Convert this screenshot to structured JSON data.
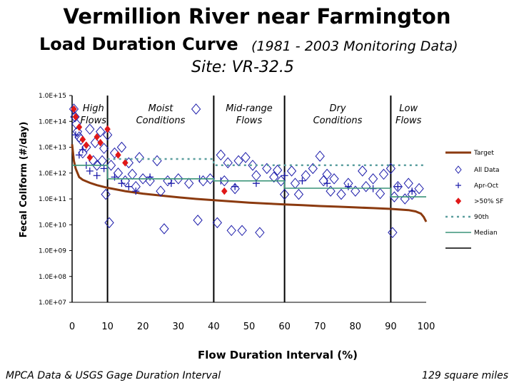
{
  "chart_data": {
    "type": "scatter",
    "title": "Vermillion River near Farmington",
    "subtitle": "Load Duration Curve",
    "period": "(1981 - 2003 Monitoring Data)",
    "site": "Site:  VR-32.5",
    "xlabel": "Flow Duration Interval (%)",
    "ylabel": "Fecal Coliform (#/day)",
    "xlim": [
      0,
      100
    ],
    "ylim": [
      10000000.0,
      1000000000000000.0
    ],
    "yscale": "log",
    "x_ticks": [
      "0",
      "10",
      "20",
      "30",
      "40",
      "50",
      "60",
      "70",
      "80",
      "90",
      "100"
    ],
    "y_ticks": [
      "1.0E+07",
      "1.0E+08",
      "1.0E+09",
      "1.0E+10",
      "1.0E+11",
      "1.0E+12",
      "1.0E+13",
      "1.0E+14",
      "1.0E+15"
    ],
    "zone_dividers": [
      10,
      40,
      60,
      90
    ],
    "zones": [
      {
        "label": "High\nFlows",
        "x": 6
      },
      {
        "label": "Moist\nConditions",
        "x": 25
      },
      {
        "label": "Mid-range\nFlows",
        "x": 50
      },
      {
        "label": "Dry\nConditions",
        "x": 75
      },
      {
        "label": "Low\nFlows",
        "x": 95
      }
    ],
    "legend_position": "right",
    "grid": false,
    "series": [
      {
        "name": "Target",
        "kind": "line",
        "color": "#8b3a0f",
        "points": [
          [
            0,
            13000000000000.0
          ],
          [
            0.5,
            3000000000000.0
          ],
          [
            1,
            1500000000000.0
          ],
          [
            2,
            700000000000.0
          ],
          [
            3,
            550000000000.0
          ],
          [
            5,
            420000000000.0
          ],
          [
            7,
            340000000000.0
          ],
          [
            10,
            270000000000.0
          ],
          [
            15,
            200000000000.0
          ],
          [
            20,
            160000000000.0
          ],
          [
            25,
            135000000000.0
          ],
          [
            30,
            115000000000.0
          ],
          [
            35,
            100000000000.0
          ],
          [
            40,
            90000000000.0
          ],
          [
            45,
            80000000000.0
          ],
          [
            50,
            72000000000.0
          ],
          [
            55,
            66000000000.0
          ],
          [
            60,
            61000000000.0
          ],
          [
            65,
            57000000000.0
          ],
          [
            70,
            53000000000.0
          ],
          [
            75,
            50000000000.0
          ],
          [
            80,
            47000000000.0
          ],
          [
            85,
            44000000000.0
          ],
          [
            90,
            41000000000.0
          ],
          [
            95,
            37000000000.0
          ],
          [
            97,
            33000000000.0
          ],
          [
            98.5,
            27000000000.0
          ],
          [
            99.3,
            20000000000.0
          ],
          [
            100,
            13000000000.0
          ]
        ]
      },
      {
        "name": "All Data",
        "kind": "marker",
        "marker": "diamond",
        "color": "#1c1caa",
        "points": [
          [
            0.5,
            300000000000000.0
          ],
          [
            0.8,
            150000000000000.0
          ],
          [
            1.2,
            80000000000000.0
          ],
          [
            1.5,
            40000000000000.0
          ],
          [
            2,
            25000000000000.0
          ],
          [
            2.5,
            20000000000000.0
          ],
          [
            3,
            6000000000000.0
          ],
          [
            4,
            10000000000000.0
          ],
          [
            5,
            50000000000000.0
          ],
          [
            6,
            3000000000000.0
          ],
          [
            6.5,
            15000000000000.0
          ],
          [
            7,
            2000000000000.0
          ],
          [
            8,
            40000000000000.0
          ],
          [
            8.5,
            3000000000000.0
          ],
          [
            9,
            9000000000000.0
          ],
          [
            9.5,
            150000000000.0
          ],
          [
            10,
            30000000000000.0
          ],
          [
            10.5,
            12000000000.0
          ],
          [
            11,
            2000000000000.0
          ],
          [
            12,
            6000000000000.0
          ],
          [
            13,
            1000000000000.0
          ],
          [
            14,
            10000000000000.0
          ],
          [
            15,
            500000000000.0
          ],
          [
            16,
            2500000000000.0
          ],
          [
            17,
            900000000000.0
          ],
          [
            18,
            300000000000.0
          ],
          [
            19,
            4000000000000.0
          ],
          [
            20,
            600000000000.0
          ],
          [
            22,
            500000000000.0
          ],
          [
            24,
            3000000000000.0
          ],
          [
            25,
            200000000000.0
          ],
          [
            26,
            7000000000.0
          ],
          [
            27,
            500000000000.0
          ],
          [
            30,
            600000000000.0
          ],
          [
            33,
            400000000000.0
          ],
          [
            35,
            300000000000000.0
          ],
          [
            35.5,
            15000000000.0
          ],
          [
            37,
            500000000000.0
          ],
          [
            39,
            600000000000.0
          ],
          [
            41,
            12000000000.0
          ],
          [
            42,
            5000000000000.0
          ],
          [
            43,
            500000000000.0
          ],
          [
            44,
            2500000000000.0
          ],
          [
            45,
            6000000000.0
          ],
          [
            46,
            250000000000.0
          ],
          [
            47,
            3000000000000.0
          ],
          [
            48,
            6000000000.0
          ],
          [
            49,
            4000000000000.0
          ],
          [
            51,
            2000000000000.0
          ],
          [
            52,
            800000000000.0
          ],
          [
            53,
            5000000000.0
          ],
          [
            55,
            1500000000000.0
          ],
          [
            57,
            700000000000.0
          ],
          [
            58,
            1300000000000.0
          ],
          [
            59,
            500000000000.0
          ],
          [
            60,
            150000000000.0
          ],
          [
            62,
            1200000000000.0
          ],
          [
            63,
            400000000000.0
          ],
          [
            64,
            150000000000.0
          ],
          [
            66,
            800000000000.0
          ],
          [
            68,
            1500000000000.0
          ],
          [
            70,
            4500000000000.0
          ],
          [
            71,
            500000000000.0
          ],
          [
            72,
            900000000000.0
          ],
          [
            73,
            200000000000.0
          ],
          [
            74,
            600000000000.0
          ],
          [
            76,
            150000000000.0
          ],
          [
            78,
            400000000000.0
          ],
          [
            80,
            200000000000.0
          ],
          [
            82,
            1200000000000.0
          ],
          [
            83,
            300000000000.0
          ],
          [
            85,
            600000000000.0
          ],
          [
            87,
            160000000000.0
          ],
          [
            88,
            900000000000.0
          ],
          [
            90,
            1500000000000.0
          ],
          [
            90.5,
            5000000000.0
          ],
          [
            91,
            120000000000.0
          ],
          [
            92,
            300000000000.0
          ],
          [
            94,
            100000000000.0
          ],
          [
            95,
            400000000000.0
          ],
          [
            96,
            150000000000.0
          ],
          [
            98,
            250000000000.0
          ]
        ]
      },
      {
        "name": "Apr-Oct",
        "kind": "marker",
        "marker": "plus",
        "color": "#1c1caa",
        "points": [
          [
            1,
            30000000000000.0
          ],
          [
            2,
            5000000000000.0
          ],
          [
            3,
            8000000000000.0
          ],
          [
            4,
            2000000000000.0
          ],
          [
            5,
            1200000000000.0
          ],
          [
            7,
            800000000000.0
          ],
          [
            9,
            1500000000000.0
          ],
          [
            12,
            700000000000.0
          ],
          [
            14,
            400000000000.0
          ],
          [
            16,
            300000000000.0
          ],
          [
            18,
            200000000000.0
          ],
          [
            22,
            700000000000.0
          ],
          [
            28,
            400000000000.0
          ],
          [
            36,
            600000000000.0
          ],
          [
            42,
            500000000000.0
          ],
          [
            46,
            300000000000.0
          ],
          [
            52,
            400000000000.0
          ],
          [
            60,
            800000000000.0
          ],
          [
            65,
            500000000000.0
          ],
          [
            72,
            400000000000.0
          ],
          [
            78,
            300000000000.0
          ],
          [
            85,
            250000000000.0
          ],
          [
            92,
            300000000000.0
          ],
          [
            96,
            200000000000.0
          ]
        ]
      },
      {
        "name": ">50% SF",
        "kind": "marker",
        "marker": "diamond-filled",
        "color": "#e01818",
        "points": [
          [
            0.5,
            300000000000000.0
          ],
          [
            1,
            150000000000000.0
          ],
          [
            2,
            60000000000000.0
          ],
          [
            3,
            20000000000000.0
          ],
          [
            4,
            12000000000000.0
          ],
          [
            5,
            4000000000000.0
          ],
          [
            7,
            25000000000000.0
          ],
          [
            8,
            15000000000000.0
          ],
          [
            10,
            50000000000000.0
          ],
          [
            13,
            5000000000000.0
          ],
          [
            15,
            2500000000000.0
          ],
          [
            43,
            200000000000.0
          ]
        ]
      },
      {
        "name": "90th",
        "kind": "dotted",
        "color": "#5a9e9e",
        "points": [
          [
            10,
            3500000000000.0
          ],
          [
            40,
            3500000000000.0
          ],
          [
            40,
            2000000000000.0
          ],
          [
            100,
            2000000000000.0
          ]
        ]
      },
      {
        "name": "Median",
        "kind": "line",
        "color": "#3a9478",
        "points": [
          [
            0,
            2000000000000.0
          ],
          [
            10,
            2000000000000.0
          ],
          [
            10,
            600000000000.0
          ],
          [
            40,
            600000000000.0
          ],
          [
            40,
            500000000000.0
          ],
          [
            60,
            500000000000.0
          ],
          [
            60,
            260000000000.0
          ],
          [
            90,
            260000000000.0
          ],
          [
            90,
            120000000000.0
          ],
          [
            100,
            120000000000.0
          ]
        ]
      }
    ],
    "legend_extra_line_color": "#000000"
  },
  "footer": {
    "left": "MPCA Data & USGS Gage Duration Interval",
    "right": "129 square miles"
  }
}
